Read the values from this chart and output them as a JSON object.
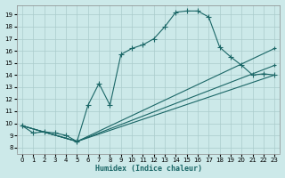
{
  "xlabel": "Humidex (Indice chaleur)",
  "bg_color": "#cce9e9",
  "grid_color": "#aacccc",
  "line_color": "#1a6666",
  "xlim": [
    -0.5,
    23.5
  ],
  "ylim": [
    7.5,
    19.8
  ],
  "xticks": [
    0,
    1,
    2,
    3,
    4,
    5,
    6,
    7,
    8,
    9,
    10,
    11,
    12,
    13,
    14,
    15,
    16,
    17,
    18,
    19,
    20,
    21,
    22,
    23
  ],
  "yticks": [
    8,
    9,
    10,
    11,
    12,
    13,
    14,
    15,
    16,
    17,
    18,
    19
  ],
  "main_series": [
    [
      0,
      9.8
    ],
    [
      1,
      9.2
    ],
    [
      2,
      9.3
    ],
    [
      3,
      9.2
    ],
    [
      4,
      9.0
    ],
    [
      5,
      8.5
    ],
    [
      6,
      11.5
    ],
    [
      7,
      13.3
    ],
    [
      8,
      11.5
    ],
    [
      9,
      15.7
    ],
    [
      10,
      16.2
    ],
    [
      11,
      16.5
    ],
    [
      12,
      17.0
    ],
    [
      13,
      18.0
    ],
    [
      14,
      19.2
    ],
    [
      15,
      19.3
    ],
    [
      16,
      19.3
    ],
    [
      17,
      18.8
    ],
    [
      18,
      16.3
    ],
    [
      19,
      15.5
    ],
    [
      20,
      14.8
    ],
    [
      21,
      14.0
    ],
    [
      22,
      14.1
    ],
    [
      23,
      14.0
    ]
  ],
  "straight_lines": [
    {
      "points": [
        [
          0,
          9.8
        ],
        [
          5,
          8.5
        ],
        [
          23,
          16.2
        ]
      ],
      "has_markers": true
    },
    {
      "points": [
        [
          0,
          9.8
        ],
        [
          5,
          8.5
        ],
        [
          23,
          14.8
        ]
      ],
      "has_markers": true
    },
    {
      "points": [
        [
          0,
          9.8
        ],
        [
          5,
          8.5
        ],
        [
          23,
          14.0
        ]
      ],
      "has_markers": false
    }
  ]
}
